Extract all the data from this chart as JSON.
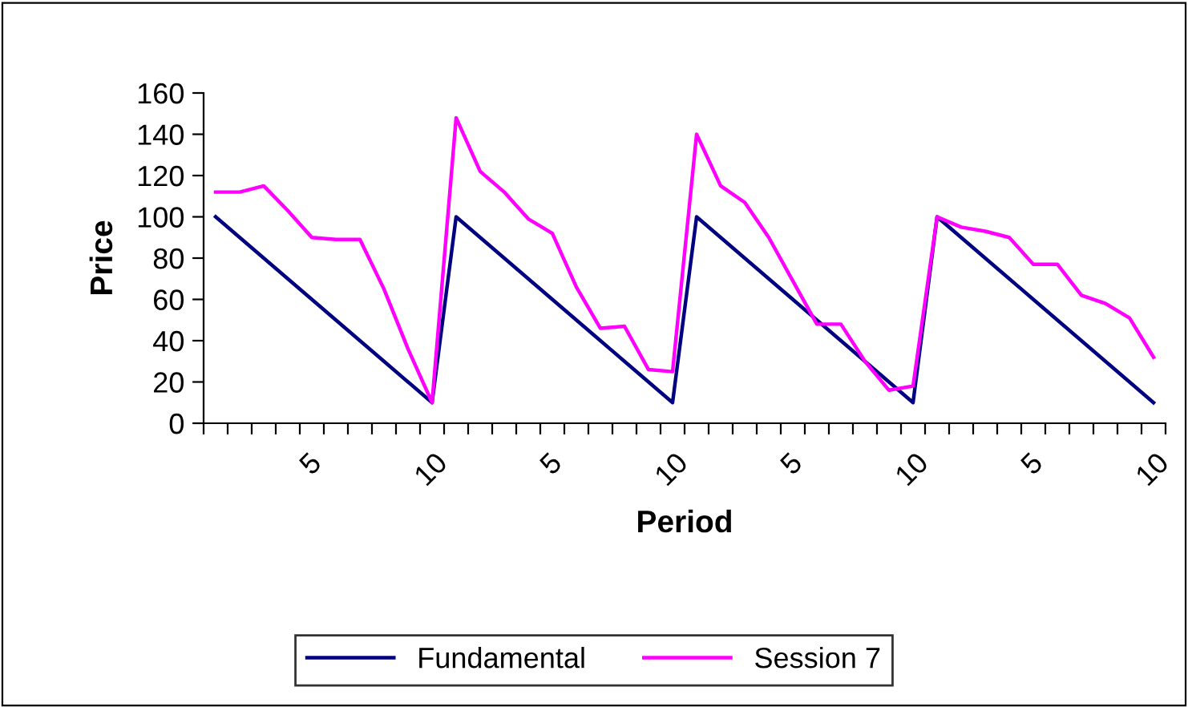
{
  "chart_data": {
    "type": "line",
    "xlabel": "Period",
    "ylabel": "Price",
    "categories": [
      null,
      null,
      null,
      null,
      "5",
      null,
      null,
      null,
      null,
      "10",
      null,
      null,
      null,
      null,
      "5",
      null,
      null,
      null,
      null,
      "10",
      null,
      null,
      null,
      null,
      "5",
      null,
      null,
      null,
      null,
      "10",
      null,
      null,
      null,
      null,
      "5",
      null,
      null,
      null,
      null,
      "10"
    ],
    "series": [
      {
        "name": "Fundamental",
        "color": "#000080",
        "values": [
          100,
          90,
          80,
          70,
          60,
          50,
          40,
          30,
          20,
          10,
          100,
          90,
          80,
          70,
          60,
          50,
          40,
          30,
          20,
          10,
          100,
          90,
          80,
          70,
          60,
          50,
          40,
          30,
          20,
          10,
          100,
          90,
          80,
          70,
          60,
          50,
          40,
          30,
          20,
          10
        ]
      },
      {
        "name": "Session 7",
        "color": "#ff00ff",
        "values": [
          112,
          112,
          115,
          103,
          90,
          89,
          89,
          65,
          36,
          10,
          148,
          122,
          112,
          99,
          92,
          66,
          46,
          47,
          26,
          25,
          140,
          115,
          107,
          90,
          69,
          48,
          48,
          30,
          16,
          18,
          100,
          95,
          93,
          90,
          77,
          77,
          62,
          58,
          51,
          32
        ]
      }
    ],
    "ylim": [
      0,
      160
    ],
    "yticks": [
      0,
      20,
      40,
      60,
      80,
      100,
      120,
      140,
      160
    ],
    "grid": false,
    "legend": "bottom",
    "marker": "none",
    "line_style": "solid"
  }
}
